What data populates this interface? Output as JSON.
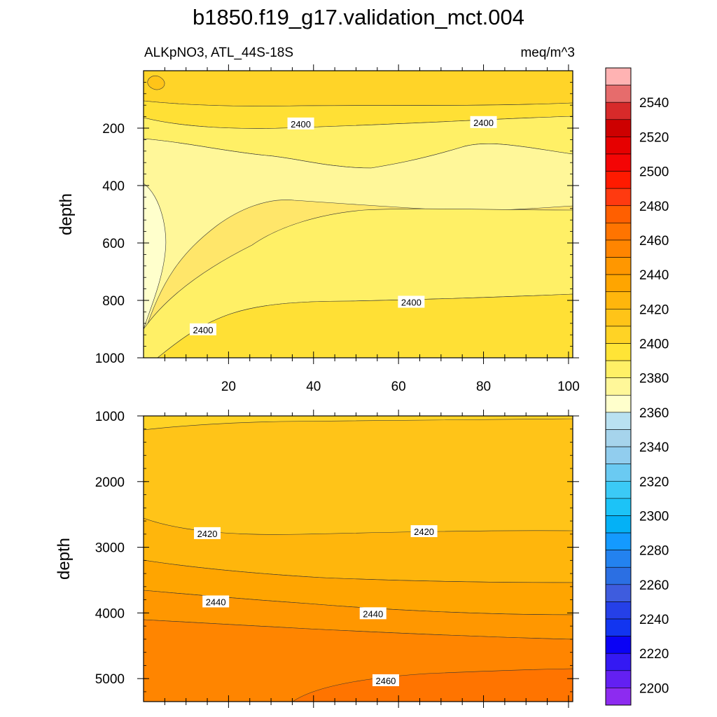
{
  "title": "b1850.f19_g17.validation_mct.004",
  "chart_data": {
    "type": "contour",
    "variable": "ALKpNO3, ATL_44S-18S",
    "units": "meq/m^3",
    "colorbar": {
      "labels": [
        "2200",
        "2220",
        "2240",
        "2260",
        "2280",
        "2300",
        "2320",
        "2340",
        "2360",
        "2380",
        "2400",
        "2420",
        "2440",
        "2460",
        "2480",
        "2500",
        "2520",
        "2540"
      ],
      "levels_per_label": 2,
      "colors": [
        "#8d2bf0",
        "#6320f2",
        "#3419f3",
        "#0a02f5",
        "#1235f0",
        "#2540e8",
        "#3e5cde",
        "#2b6fe3",
        "#2382ef",
        "#149aff",
        "#04b1f6",
        "#1cc3f7",
        "#3bcaf6",
        "#6acaf2",
        "#91cdee",
        "#a6d4ec",
        "#b9e1f1",
        "#ffffcc",
        "#fff799",
        "#fff066",
        "#ffe436",
        "#ffd325",
        "#ffc418",
        "#ffb60c",
        "#ffa500",
        "#ff9700",
        "#ff8500",
        "#ff7400",
        "#ff5f00",
        "#ff3a10",
        "#ff1a00",
        "#f40505",
        "#e60000",
        "#cd0000",
        "#d72a2a",
        "#e66c6c",
        "#ffb3b3"
      ]
    },
    "panels": [
      {
        "name": "upper",
        "ylabel": "depth",
        "ylim": [
          0,
          1000
        ],
        "y_ticks": [
          "200",
          "400",
          "600",
          "800",
          "1000"
        ],
        "x_ticks": [
          "20",
          "40",
          "60",
          "80",
          "100"
        ],
        "xlim": [
          0,
          101
        ],
        "contour_labels": [
          {
            "text": "2400",
            "x": 37,
            "y": 185
          },
          {
            "text": "2400",
            "x": 80,
            "y": 180
          },
          {
            "text": "2400",
            "x": 63,
            "y": 806
          },
          {
            "text": "2400",
            "x": 14,
            "y": 902
          }
        ]
      },
      {
        "name": "lower",
        "ylabel": "depth",
        "ylim": [
          1000,
          5350
        ],
        "y_ticks": [
          "1000",
          "2000",
          "3000",
          "4000",
          "5000"
        ],
        "xlim": [
          0,
          101
        ],
        "contour_labels": [
          {
            "text": "2420",
            "x": 15,
            "y": 2790
          },
          {
            "text": "2420",
            "x": 66,
            "y": 2760
          },
          {
            "text": "2440",
            "x": 17,
            "y": 3830
          },
          {
            "text": "2440",
            "x": 54,
            "y": 4010
          },
          {
            "text": "2460",
            "x": 57,
            "y": 5030
          }
        ]
      }
    ]
  }
}
